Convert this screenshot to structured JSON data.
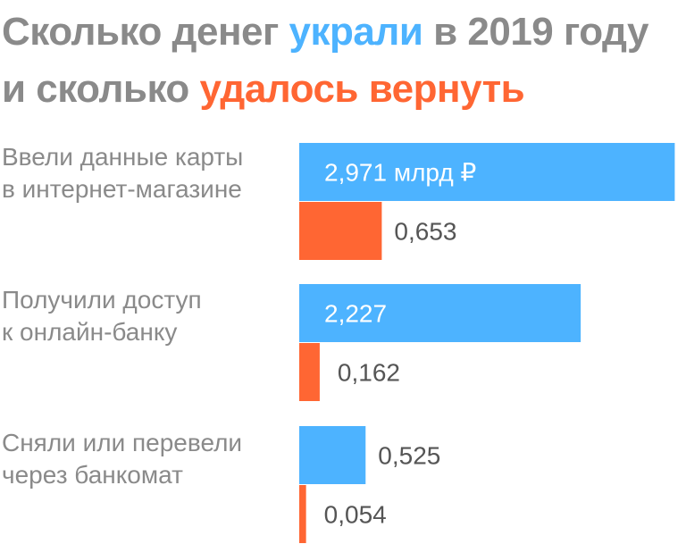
{
  "title": {
    "part1": "Сколько денег ",
    "part2": "украли",
    "part3": " в 2019 году",
    "part4": "и сколько ",
    "part5": "удалось вернуть"
  },
  "colors": {
    "stolen": "#4db3ff",
    "returned": "#ff6633",
    "text": "#8a8a8a"
  },
  "chart_data": {
    "type": "bar",
    "orientation": "horizontal",
    "categories": [
      [
        "Ввели данные карты",
        "в интернет-магазине"
      ],
      [
        "Получили доступ",
        "к онлайн-банку"
      ],
      [
        "Сняли или перевели",
        "через банкомат"
      ]
    ],
    "series": [
      {
        "key": "stolen",
        "values": [
          2.971,
          2.227,
          0.525
        ],
        "labels": [
          "2,971 млрд ₽",
          "2,227",
          "0,525"
        ]
      },
      {
        "key": "returned",
        "values": [
          0.653,
          0.162,
          0.054
        ],
        "labels": [
          "0,653",
          "0,162",
          "0,054"
        ]
      }
    ],
    "xlim": [
      0,
      3.06
    ],
    "unit": "млрд ₽",
    "grid": false,
    "legend": "none"
  }
}
